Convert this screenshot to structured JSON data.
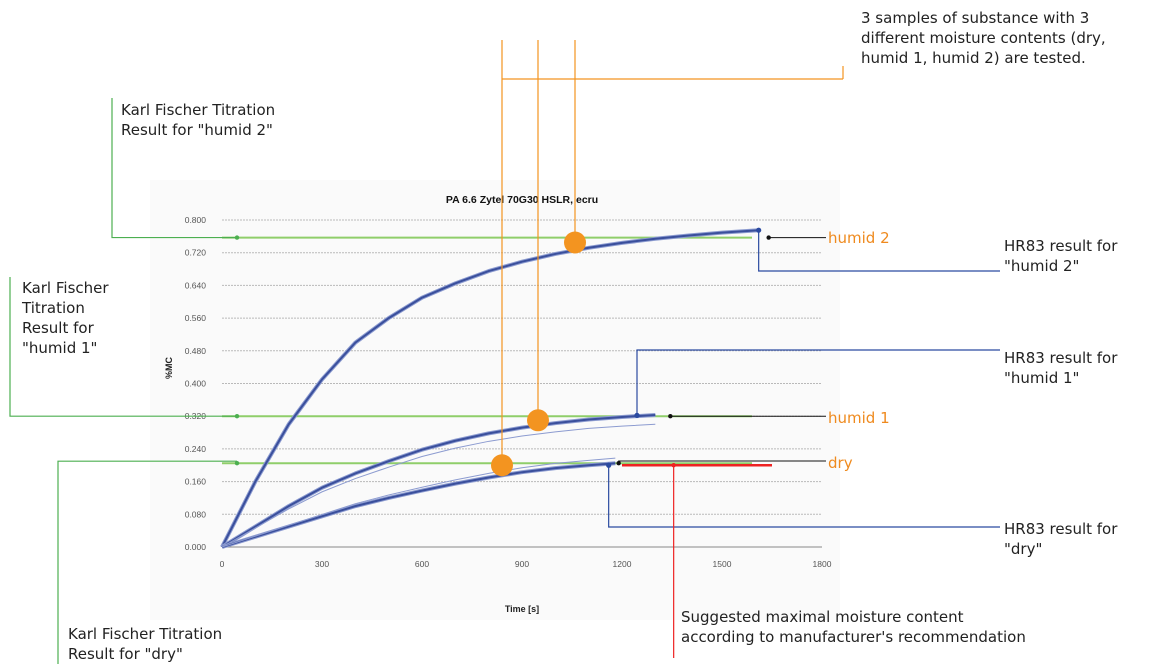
{
  "annotations": {
    "samples_note": "3 samples of substance with 3\ndifferent moisture contents (dry,\nhumid 1, humid 2) are tested.",
    "kf_humid2": "Karl Fischer Titration\nResult for \"humid 2\"",
    "kf_humid1": "Karl Fischer\nTitration\nResult for\n\"humid 1\"",
    "kf_dry": "Karl Fischer Titration\nResult for \"dry\"",
    "hr83_humid2": "HR83 result for\n\"humid 2\"",
    "hr83_humid1": "HR83 result for\n\"humid 1\"",
    "hr83_dry": "HR83 result for\n\"dry\"",
    "suggested_max": "Suggested maximal moisture content\naccording to manufacturer's recommendation"
  },
  "colors": {
    "curve": "#3a4f9c",
    "curve_light": "#8c9bd0",
    "kf_line": "#8fce6a",
    "kf_leader": "#4caf50",
    "hr_leader": "#2b4aa0",
    "orange": "#f39420",
    "orange_label": "#ef8a1e",
    "red": "#ee2222",
    "gridline": "#b9b9b9"
  },
  "chart_data": {
    "type": "line",
    "title": "PA 6.6 Zytel 70G30 HSLR, ecru",
    "xlabel": "Time [s]",
    "ylabel": "%MC",
    "xlim": [
      0,
      1800
    ],
    "ylim": [
      0,
      0.8
    ],
    "x_ticks": [
      "0",
      "300",
      "600",
      "900",
      "1200",
      "1500",
      "1800"
    ],
    "y_ticks": [
      "0.000",
      "0.080",
      "0.160",
      "0.240",
      "0.320",
      "0.400",
      "0.480",
      "0.560",
      "0.640",
      "0.720",
      "0.800"
    ],
    "grid": true,
    "series": [
      {
        "name": "humid 2",
        "x": [
          0,
          100,
          200,
          300,
          400,
          500,
          600,
          700,
          800,
          900,
          1000,
          1100,
          1200,
          1300,
          1400,
          1500,
          1610
        ],
        "y": [
          0,
          0.16,
          0.3,
          0.41,
          0.5,
          0.56,
          0.61,
          0.645,
          0.675,
          0.698,
          0.717,
          0.732,
          0.744,
          0.754,
          0.762,
          0.769,
          0.775
        ]
      },
      {
        "name": "humid 1",
        "x": [
          0,
          100,
          200,
          300,
          400,
          500,
          600,
          700,
          800,
          900,
          1000,
          1100,
          1200,
          1300
        ],
        "y": [
          0,
          0.05,
          0.1,
          0.145,
          0.18,
          0.21,
          0.238,
          0.26,
          0.278,
          0.292,
          0.303,
          0.312,
          0.318,
          0.323
        ]
      },
      {
        "name": "dry",
        "x": [
          0,
          100,
          200,
          300,
          400,
          500,
          600,
          700,
          800,
          900,
          1000,
          1100,
          1180
        ],
        "y": [
          0,
          0.025,
          0.05,
          0.075,
          0.1,
          0.12,
          0.138,
          0.155,
          0.17,
          0.183,
          0.193,
          0.2,
          0.205
        ]
      }
    ],
    "hr83_results": [
      {
        "name": "humid 2",
        "x": 1610,
        "y": 0.775
      },
      {
        "name": "humid 1",
        "x": 1245,
        "y": 0.322
      },
      {
        "name": "dry",
        "x": 1160,
        "y": 0.2
      }
    ],
    "karl_fischer_results": [
      {
        "name": "humid 2",
        "y": 0.757
      },
      {
        "name": "humid 1",
        "y": 0.32
      },
      {
        "name": "dry",
        "y": 0.205
      }
    ],
    "suggested_max": {
      "y": 0.2,
      "x_start": 1200,
      "x_end": 1650
    },
    "series_labels": [
      "humid 2",
      "humid 1",
      "dry"
    ]
  }
}
